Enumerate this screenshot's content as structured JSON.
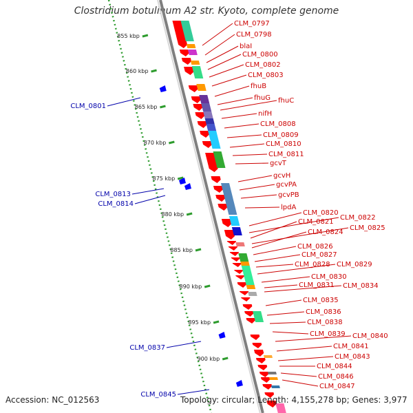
{
  "title": "Clostridium botulinum A2 str. Kyoto, complete genome",
  "footer": {
    "accession": "Accession: NC_012563",
    "info": "Topology: circular; Length: 4,155,278 bp; Genes: 3,977"
  },
  "colors": {
    "forward_gene": "#ff0000",
    "reverse_gene": "#0000ff",
    "backbone": "#7f7f7f",
    "ruler": "#2e9c2e",
    "label_forward": "#cc0000",
    "label_reverse": "#0000aa"
  },
  "ruler": {
    "unit": "kbp",
    "ticks": [
      "855 kbp",
      "860 kbp",
      "865 kbp",
      "870 kbp",
      "875 kbp",
      "880 kbp",
      "885 kbp",
      "890 kbp",
      "895 kbp",
      "900 kbp"
    ]
  },
  "labels_right": [
    "CLM_0797",
    "CLM_0798",
    "blaI",
    "CLM_0800",
    "CLM_0802",
    "CLM_0803",
    "fhuB",
    "fhuG",
    "fhuC",
    "nifH",
    "CLM_0808",
    "CLM_0809",
    "CLM_0810",
    "CLM_0811",
    "gcvT",
    "gcvH",
    "gcvPA",
    "gcvPB",
    "lpdA",
    "CLM_0820",
    "CLM_0822",
    "CLM_0821",
    "CLM_0825",
    "CLM_0824",
    "CLM_0826",
    "CLM_0827",
    "CLM_0828",
    "CLM_0829",
    "CLM_0830",
    "CLM_0831",
    "CLM_0834",
    "CLM_0835",
    "CLM_0836",
    "CLM_0838",
    "CLM_0839",
    "CLM_0840",
    "CLM_0841",
    "CLM_0843",
    "CLM_0844",
    "CLM_0846",
    "CLM_0847"
  ],
  "labels_left": [
    "CLM_0801",
    "CLM_0813",
    "CLM_0814",
    "CLM_0837",
    "CLM_0845"
  ]
}
